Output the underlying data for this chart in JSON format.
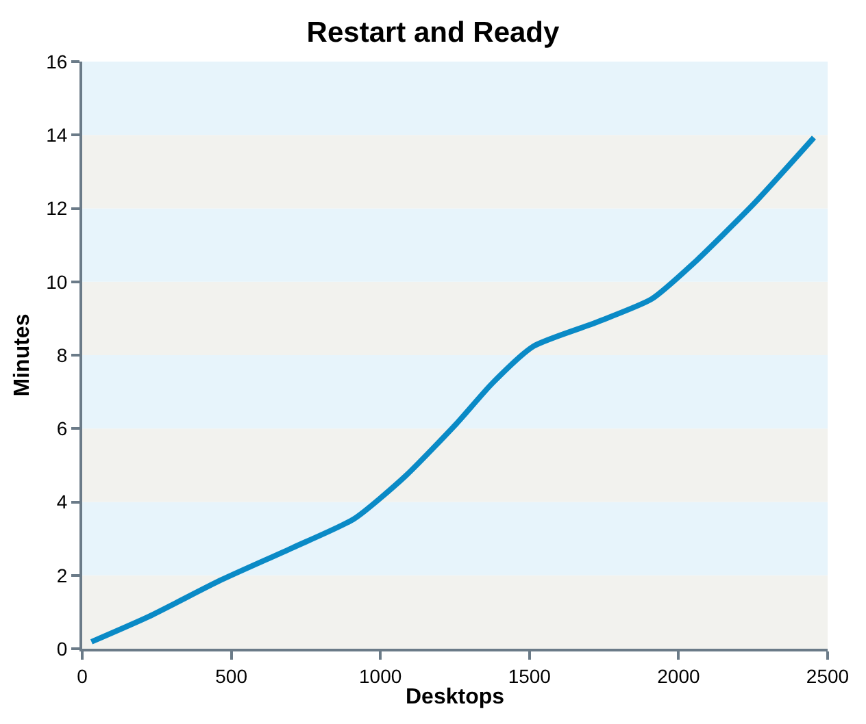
{
  "chart_data": {
    "type": "line",
    "title": "Restart and Ready",
    "xlabel": "Desktops",
    "ylabel": "Minutes",
    "x": [
      31,
      224,
      465,
      705,
      912,
      1082,
      1256,
      1375,
      1513,
      1720,
      1910,
      2046,
      2253,
      2454
    ],
    "series": [
      {
        "color": "#0a8ac6",
        "values": [
          0.19,
          0.88,
          1.87,
          2.75,
          3.54,
          4.69,
          6.14,
          7.23,
          8.24,
          8.88,
          9.53,
          10.47,
          12.13,
          13.93
        ]
      }
    ],
    "xlim": [
      0,
      2500
    ],
    "xticks": [
      0,
      500,
      1000,
      1500,
      2000,
      2500
    ],
    "ylim": [
      0,
      16
    ],
    "yticks": [
      0,
      2,
      4,
      6,
      8,
      10,
      12,
      14,
      16
    ],
    "grid": false,
    "marker": "none",
    "line_style": "solid",
    "bands": [
      {
        "axis": "y",
        "from": 0,
        "to": 2,
        "color": "#f2f2ee"
      },
      {
        "axis": "y",
        "from": 2,
        "to": 4,
        "color": "#e7f4fb"
      },
      {
        "axis": "y",
        "from": 4,
        "to": 6,
        "color": "#f2f2ee"
      },
      {
        "axis": "y",
        "from": 6,
        "to": 8,
        "color": "#e7f4fb"
      },
      {
        "axis": "y",
        "from": 8,
        "to": 10,
        "color": "#f2f2ee"
      },
      {
        "axis": "y",
        "from": 10,
        "to": 12,
        "color": "#e7f4fb"
      },
      {
        "axis": "y",
        "from": 12,
        "to": 14,
        "color": "#f2f2ee"
      },
      {
        "axis": "y",
        "from": 14,
        "to": 16,
        "color": "#e7f4fb"
      }
    ]
  }
}
